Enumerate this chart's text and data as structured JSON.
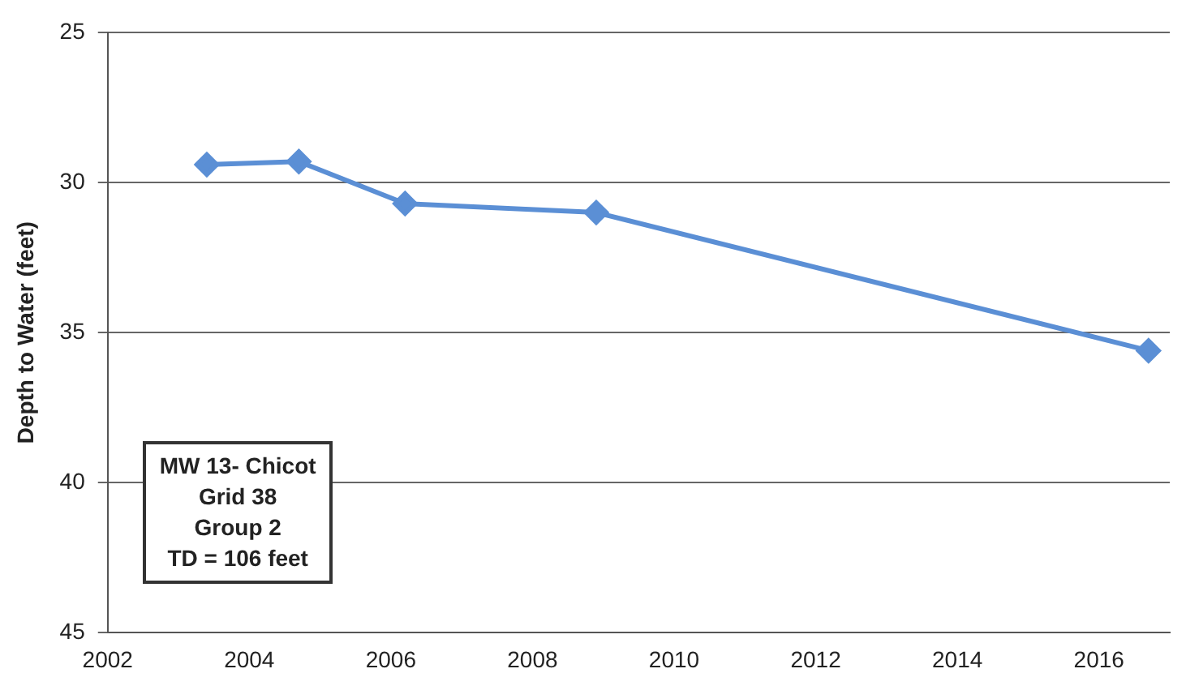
{
  "chart_data": {
    "type": "line",
    "ylabel": "Depth to Water (feet)",
    "x": [
      2003.4,
      2004.7,
      2006.2,
      2008.9,
      2016.7
    ],
    "series": [
      {
        "color": "#5b8fd5",
        "values": [
          29.4,
          29.3,
          30.7,
          31.0,
          35.6
        ]
      }
    ],
    "xlim": [
      2002,
      2017
    ],
    "xticks": [
      2002,
      2004,
      2006,
      2008,
      2010,
      2012,
      2014,
      2016
    ],
    "ylim": [
      45,
      25
    ],
    "yticks": [
      25,
      30,
      35,
      40,
      45
    ],
    "grid": "y",
    "marker": "diamond",
    "line_style": "solid",
    "legend": false,
    "annotations": [
      "MW 13- Chicot",
      "Grid 38",
      "Group 2",
      "TD = 106 feet"
    ]
  }
}
